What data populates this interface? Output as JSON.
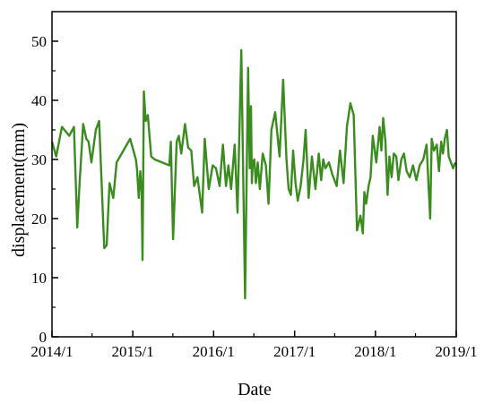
{
  "chart_data": {
    "type": "line",
    "title": "",
    "xlabel": "Date",
    "ylabel": "displacement(mm)",
    "x_ticks": [
      "2014/1",
      "2015/1",
      "2016/1",
      "2017/1",
      "2018/1",
      "2019/1"
    ],
    "y_ticks": [
      0,
      10,
      20,
      30,
      40,
      50
    ],
    "xlim": [
      "2014-01-01",
      "2019-01-01"
    ],
    "ylim": [
      0,
      55
    ],
    "grid": false,
    "legend": "none",
    "colors": {
      "line": "#3a8c1e",
      "axis": "#000000"
    },
    "series": [
      {
        "x": [
          "2014-01-01",
          "2014-01-20",
          "2014-02-15",
          "2014-03-20",
          "2014-04-10",
          "2014-04-25",
          "2014-05-05",
          "2014-05-22",
          "2014-06-05",
          "2014-06-15",
          "2014-06-28",
          "2014-07-18",
          "2014-08-02",
          "2014-08-25",
          "2014-09-05",
          "2014-09-18",
          "2014-10-05",
          "2014-10-20",
          "2014-12-20",
          "2015-01-15",
          "2015-01-20",
          "2015-01-28",
          "2015-02-04",
          "2015-02-10",
          "2015-02-14",
          "2015-02-20",
          "2015-02-28",
          "2015-03-10",
          "2015-03-25",
          "2015-04-10",
          "2015-06-15",
          "2015-06-22",
          "2015-07-02",
          "2015-07-18",
          "2015-07-28",
          "2015-08-08",
          "2015-08-25",
          "2015-09-08",
          "2015-09-22",
          "2015-10-05",
          "2015-10-20",
          "2015-11-10",
          "2015-11-22",
          "2015-12-10",
          "2015-12-28",
          "2016-01-12",
          "2016-01-28",
          "2016-02-12",
          "2016-02-26",
          "2016-03-08",
          "2016-03-20",
          "2016-04-05",
          "2016-04-18",
          "2016-05-05",
          "2016-05-22",
          "2016-06-05",
          "2016-06-12",
          "2016-06-18",
          "2016-06-22",
          "2016-06-26",
          "2016-07-03",
          "2016-07-10",
          "2016-07-18",
          "2016-07-28",
          "2016-08-10",
          "2016-08-24",
          "2016-09-05",
          "2016-09-18",
          "2016-10-05",
          "2016-10-25",
          "2016-11-10",
          "2016-11-25",
          "2016-12-05",
          "2016-12-15",
          "2016-12-25",
          "2017-01-05",
          "2017-01-15",
          "2017-01-28",
          "2017-02-10",
          "2017-02-20",
          "2017-03-05",
          "2017-03-20",
          "2017-04-05",
          "2017-04-20",
          "2017-05-01",
          "2017-05-10",
          "2017-05-20",
          "2017-06-05",
          "2017-06-20",
          "2017-07-10",
          "2017-07-25",
          "2017-08-10",
          "2017-08-25",
          "2017-09-10",
          "2017-09-25",
          "2017-10-10",
          "2017-10-25",
          "2017-11-05",
          "2017-11-12",
          "2017-11-20",
          "2017-12-01",
          "2017-12-10",
          "2017-12-20",
          "2018-01-05",
          "2018-01-20",
          "2018-01-28",
          "2018-02-05",
          "2018-02-15",
          "2018-02-25",
          "2018-03-05",
          "2018-03-15",
          "2018-03-25",
          "2018-04-05",
          "2018-04-15",
          "2018-04-28",
          "2018-05-10",
          "2018-05-22",
          "2018-06-05",
          "2018-06-20",
          "2018-07-05",
          "2018-07-20",
          "2018-08-05",
          "2018-08-20",
          "2018-09-05",
          "2018-09-12",
          "2018-09-22",
          "2018-10-05",
          "2018-10-15",
          "2018-10-25",
          "2018-11-02",
          "2018-11-10",
          "2018-11-20",
          "2018-11-28",
          "2018-12-08",
          "2018-12-18",
          "2018-12-28"
        ],
        "y": [
          33.0,
          30.5,
          35.5,
          34.0,
          35.5,
          18.5,
          25.5,
          36.0,
          33.5,
          33.0,
          29.5,
          35.0,
          36.5,
          15.0,
          15.5,
          26.0,
          23.5,
          29.5,
          33.5,
          30.0,
          28.5,
          23.5,
          28.0,
          24.5,
          13.0,
          41.5,
          36.5,
          37.5,
          30.5,
          30.0,
          29.0,
          33.0,
          16.5,
          33.0,
          34.0,
          31.0,
          36.0,
          32.0,
          31.5,
          25.5,
          27.0,
          21.0,
          33.5,
          25.0,
          29.0,
          28.5,
          25.5,
          32.5,
          25.5,
          29.0,
          25.0,
          32.5,
          21.0,
          48.5,
          6.5,
          45.5,
          28.5,
          39.0,
          26.0,
          29.5,
          30.0,
          26.0,
          29.5,
          25.0,
          31.0,
          29.0,
          22.5,
          35.0,
          38.0,
          30.5,
          43.5,
          30.0,
          25.0,
          24.0,
          31.5,
          26.0,
          23.0,
          25.5,
          30.0,
          35.0,
          23.5,
          30.5,
          25.0,
          31.0,
          26.5,
          30.0,
          28.5,
          29.5,
          27.5,
          25.5,
          31.5,
          26.0,
          35.5,
          39.5,
          37.5,
          18.0,
          20.5,
          17.5,
          24.5,
          22.5,
          25.5,
          27.0,
          34.0,
          29.5,
          35.5,
          31.5,
          37.0,
          33.0,
          24.0,
          30.5,
          27.0,
          31.0,
          30.5,
          26.5,
          30.0,
          31.0,
          28.0,
          27.0,
          29.0,
          26.5,
          29.0,
          30.0,
          32.5,
          20.0,
          33.5,
          31.5,
          32.5,
          28.0,
          33.0,
          31.0,
          33.5,
          35.0,
          30.5,
          29.5,
          28.5,
          29.5
        ]
      }
    ]
  }
}
